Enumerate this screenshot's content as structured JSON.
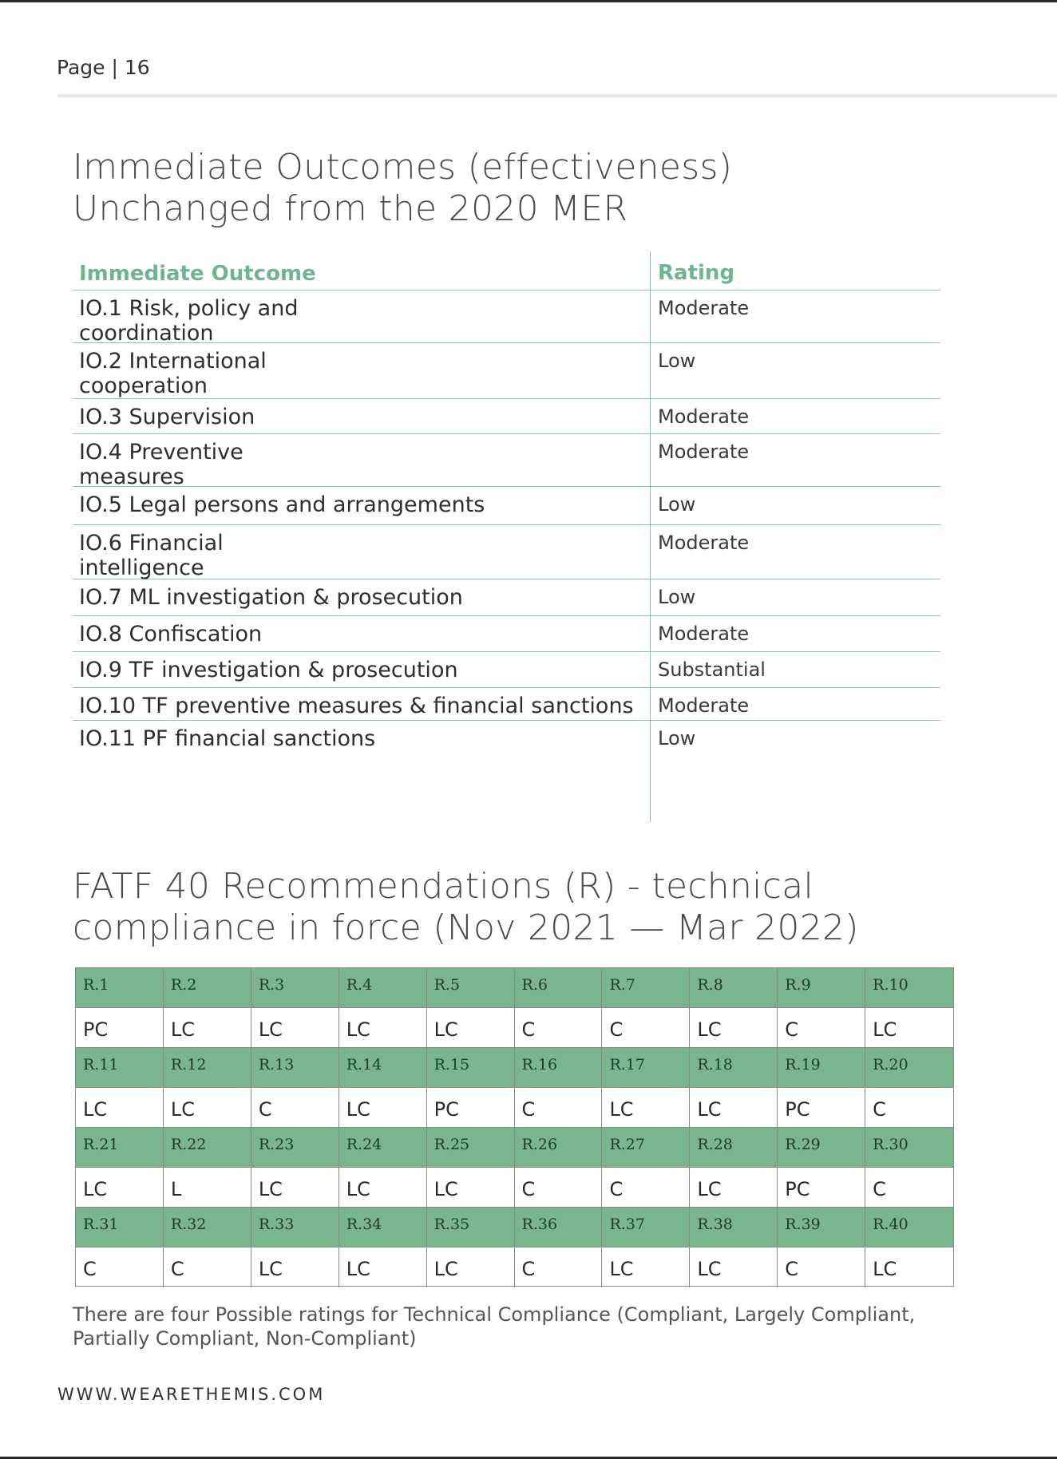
{
  "page": {
    "label": "Page | 16"
  },
  "section1": {
    "heading_line1": "Immediate Outcomes (effectiveness)",
    "heading_line2": "Unchanged from the 2020 MER",
    "col_outcome": "Immediate Outcome",
    "col_rating": "Rating",
    "rows": [
      {
        "line1": "IO.1 Risk, policy and",
        "line2": "coordination",
        "rating": "Moderate"
      },
      {
        "line1": "IO.2 International",
        "line2": "cooperation",
        "rating": "Low"
      },
      {
        "line1": "IO.3 Supervision",
        "line2": "",
        "rating": "Moderate"
      },
      {
        "line1": "IO.4 Preventive",
        "line2": "measures",
        "rating": "Moderate"
      },
      {
        "line1": "IO.5 Legal persons and arrangements",
        "line2": "",
        "rating": "Low"
      },
      {
        "line1": "IO.6 Financial",
        "line2": "intelligence",
        "rating": "Moderate"
      },
      {
        "line1": "IO.7 ML investigation & prosecution",
        "line2": "",
        "rating": "Low"
      },
      {
        "line1": "IO.8 Confiscation",
        "line2": "",
        "rating": "Moderate"
      },
      {
        "line1": "IO.9 TF investigation & prosecution",
        "line2": "",
        "rating": "Substantial"
      },
      {
        "line1": "IO.10 TF preventive measures & financial sanctions",
        "line2": "",
        "rating": "Moderate"
      },
      {
        "line1": "IO.11 PF financial sanctions",
        "line2": "",
        "rating": "Low"
      }
    ]
  },
  "section2": {
    "heading_line1": "FATF 40 Recommendations (R) - technical",
    "heading_line2": "compliance in force (Nov 2021 — Mar 2022)",
    "grid": [
      {
        "labels": [
          "R.1",
          "R.2",
          "R.3",
          "R.4",
          "R.5",
          "R.6",
          "R.7",
          "R.8",
          "R.9",
          "R.10"
        ],
        "values": [
          "PC",
          "LC",
          "LC",
          "LC",
          "LC",
          "C",
          "C",
          "LC",
          "C",
          "LC"
        ]
      },
      {
        "labels": [
          "R.11",
          "R.12",
          "R.13",
          "R.14",
          "R.15",
          "R.16",
          "R.17",
          "R.18",
          "R.19",
          "R.20"
        ],
        "values": [
          "LC",
          "LC",
          "C",
          "LC",
          "PC",
          "C",
          "LC",
          "LC",
          "PC",
          "C"
        ]
      },
      {
        "labels": [
          "R.21",
          "R.22",
          "R.23",
          "R.24",
          "R.25",
          "R.26",
          "R.27",
          "R.28",
          "R.29",
          "R.30"
        ],
        "values": [
          "LC",
          "L",
          "LC",
          "LC",
          "LC",
          "C",
          "C",
          "LC",
          "PC",
          "C"
        ]
      },
      {
        "labels": [
          "R.31",
          "R.32",
          "R.33",
          "R.34",
          "R.35",
          "R.36",
          "R.37",
          "R.38",
          "R.39",
          "R.40"
        ],
        "values": [
          "C",
          "C",
          "LC",
          "LC",
          "LC",
          "C",
          "LC",
          "LC",
          "C",
          "LC"
        ]
      }
    ],
    "footnote": "There are four Possible ratings for Technical Compliance (Compliant, Largely Compliant, Partially Compliant, Non-Compliant)"
  },
  "footer": {
    "website": "WWW.WEARETHEMIS.COM"
  }
}
